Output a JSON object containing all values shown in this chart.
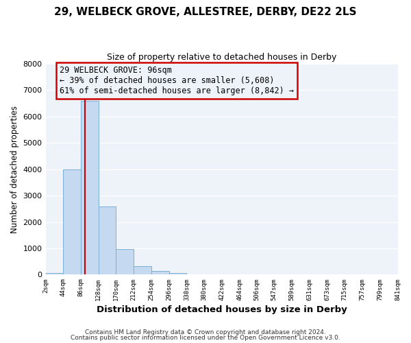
{
  "title": "29, WELBECK GROVE, ALLESTREE, DERBY, DE22 2LS",
  "subtitle": "Size of property relative to detached houses in Derby",
  "xlabel": "Distribution of detached houses by size in Derby",
  "ylabel": "Number of detached properties",
  "bar_color": "#c5d9f0",
  "bar_edge_color": "#7aafd4",
  "bg_color": "#ffffff",
  "plot_bg_color": "#eef2f9",
  "grid_color": "#ffffff",
  "annotation_box_color": "#cc0000",
  "vline_color": "#cc0000",
  "footer_line1": "Contains HM Land Registry data © Crown copyright and database right 2024.",
  "footer_line2": "Contains public sector information licensed under the Open Government Licence v3.0.",
  "annotation_title": "29 WELBECK GROVE: 96sqm",
  "annotation_line2": "← 39% of detached houses are smaller (5,608)",
  "annotation_line3": "61% of semi-detached houses are larger (8,842) →",
  "bin_edges": [
    2,
    44,
    86,
    128,
    170,
    212,
    254,
    296,
    338,
    380,
    422,
    464,
    506,
    547,
    589,
    631,
    673,
    715,
    757,
    799,
    841
  ],
  "bin_counts": [
    60,
    4000,
    6600,
    2600,
    970,
    330,
    130,
    60,
    0,
    0,
    0,
    0,
    0,
    0,
    0,
    0,
    0,
    0,
    0,
    0
  ],
  "property_size": 96,
  "ylim": [
    0,
    8000
  ],
  "yticks": [
    0,
    1000,
    2000,
    3000,
    4000,
    5000,
    6000,
    7000,
    8000
  ]
}
